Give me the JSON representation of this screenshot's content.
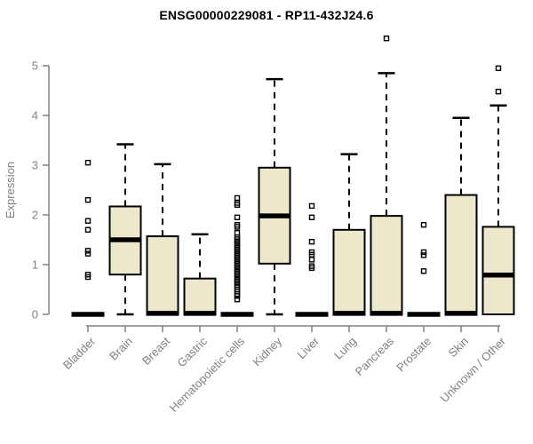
{
  "title": "ENSG00000229081 - RP11-432J24.6",
  "chart_data": {
    "type": "boxplot",
    "title": "ENSG00000229081 - RP11-432J24.6",
    "xlabel": "",
    "ylabel": "Expression",
    "ylim": [
      0,
      5
    ],
    "yticks": [
      0,
      1,
      2,
      3,
      4,
      5
    ],
    "grid": false,
    "legend": "none",
    "box_fill_color": "#EDE7CC",
    "box_line_color": "#000000",
    "axis_color": "#808080",
    "categories": [
      "Bladder",
      "Brain",
      "Breast",
      "Gastric",
      "Hematopoietic cells",
      "Kidney",
      "Liver",
      "Lung",
      "Pancreas",
      "Prostate",
      "Skin",
      "Unknown / Other"
    ],
    "series": [
      {
        "category": "Bladder",
        "q1": 0,
        "median": 0,
        "q3": 0,
        "whisker_low": 0,
        "whisker_high": 0,
        "outliers": [
          3.05,
          2.3,
          1.88,
          1.7,
          1.28,
          1.22,
          0.8,
          0.75
        ]
      },
      {
        "category": "Brain",
        "q1": 0.8,
        "median": 1.5,
        "q3": 2.17,
        "whisker_low": 0,
        "whisker_high": 3.42,
        "outliers": []
      },
      {
        "category": "Breast",
        "q1": 0,
        "median": 0.02,
        "q3": 1.57,
        "whisker_low": 0,
        "whisker_high": 3.02,
        "outliers": []
      },
      {
        "category": "Gastric",
        "q1": 0,
        "median": 0.02,
        "q3": 0.72,
        "whisker_low": 0,
        "whisker_high": 1.61,
        "outliers": []
      },
      {
        "category": "Hematopoietic cells",
        "q1": 0,
        "median": 0,
        "q3": 0,
        "whisker_low": 0,
        "whisker_high": 0,
        "outliers": [
          2.34,
          2.24,
          2.2,
          1.95,
          1.8,
          1.76,
          1.64,
          1.55,
          1.51,
          1.47,
          1.43,
          1.39,
          1.35,
          1.31,
          1.27,
          1.23,
          1.19,
          1.15,
          1.11,
          1.07,
          1.03,
          0.99,
          0.95,
          0.91,
          0.87,
          0.83,
          0.79,
          0.75,
          0.71,
          0.67,
          0.63,
          0.59,
          0.55,
          0.5,
          0.46,
          0.41,
          0.37,
          0.3
        ]
      },
      {
        "category": "Kidney",
        "q1": 1.02,
        "median": 1.98,
        "q3": 2.95,
        "whisker_low": 0,
        "whisker_high": 4.73,
        "outliers": []
      },
      {
        "category": "Liver",
        "q1": 0,
        "median": 0,
        "q3": 0,
        "whisker_low": 0,
        "whisker_high": 0,
        "outliers": [
          2.18,
          1.95,
          1.46,
          1.25,
          1.2,
          1.1,
          0.97,
          0.93
        ]
      },
      {
        "category": "Lung",
        "q1": 0,
        "median": 0.02,
        "q3": 1.7,
        "whisker_low": 0,
        "whisker_high": 3.22,
        "outliers": []
      },
      {
        "category": "Pancreas",
        "q1": 0,
        "median": 0.02,
        "q3": 1.98,
        "whisker_low": 0,
        "whisker_high": 4.85,
        "outliers": [
          5.55
        ]
      },
      {
        "category": "Prostate",
        "q1": 0,
        "median": 0,
        "q3": 0,
        "whisker_low": 0,
        "whisker_high": 0,
        "outliers": [
          1.8,
          1.25,
          1.19,
          0.87
        ]
      },
      {
        "category": "Skin",
        "q1": 0,
        "median": 0.02,
        "q3": 2.4,
        "whisker_low": 0,
        "whisker_high": 3.95,
        "outliers": []
      },
      {
        "category": "Unknown / Other",
        "q1": 0,
        "median": 0.79,
        "q3": 1.76,
        "whisker_low": 0,
        "whisker_high": 4.2,
        "outliers": [
          4.95,
          4.48
        ]
      }
    ]
  }
}
